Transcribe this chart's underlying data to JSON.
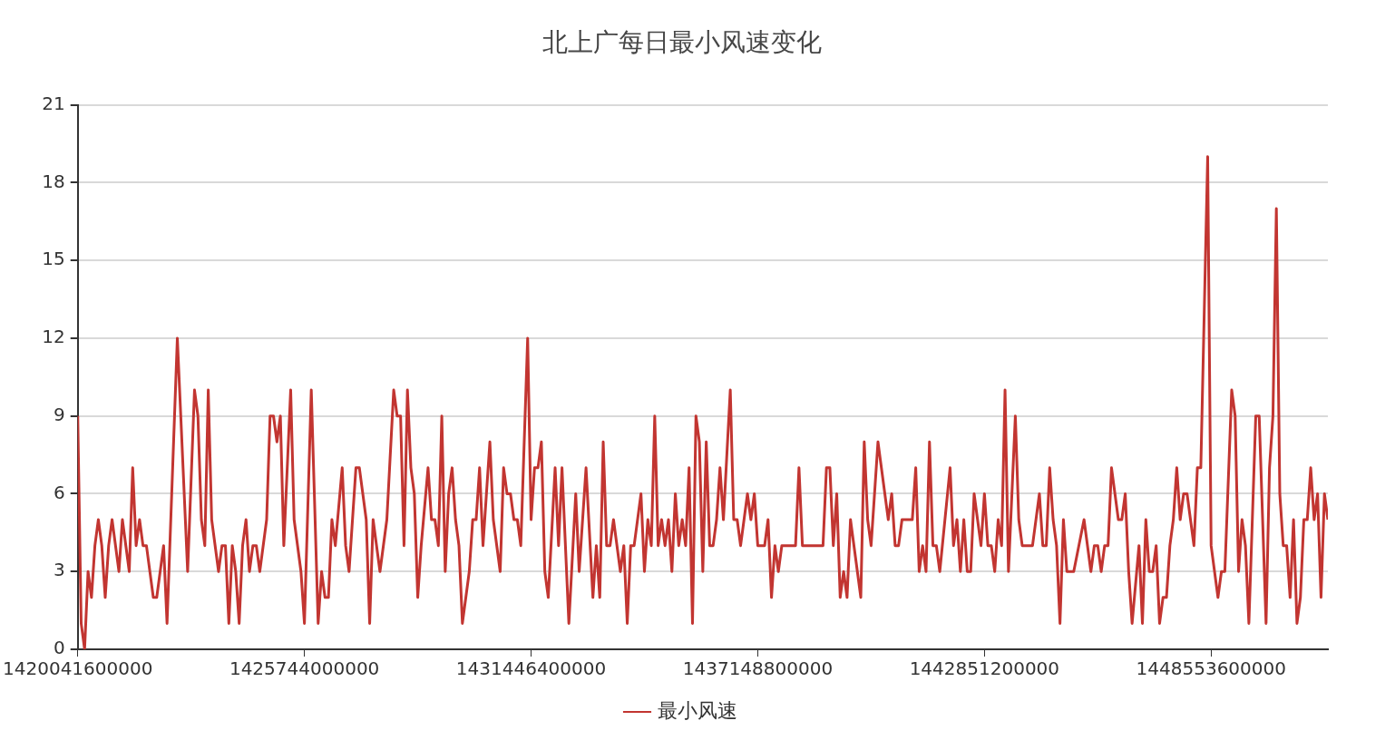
{
  "chart_data": {
    "type": "line",
    "title": "北上广每日最小风速变化",
    "legend": "bottom",
    "grid": "y",
    "marker": "none",
    "line_style": "solid",
    "xlim": [
      1420041600000,
      1451491200000
    ],
    "xticks": [
      1420041600000,
      1425744000000,
      1431446400000,
      1437148800000,
      1442851200000,
      1448553600000
    ],
    "ylim": [
      0,
      21
    ],
    "yticks": [
      0,
      3,
      6,
      9,
      12,
      15,
      18,
      21
    ],
    "series": [
      {
        "name": "最小风速",
        "color": "#c23531",
        "x": [
          1420041600000,
          1420128000000,
          1420214400000,
          1420300800000,
          1420387200000,
          1420473600000,
          1420560000000,
          1420646400000,
          1420732800000,
          1420819200000,
          1420905600000,
          1421078400000,
          1421164800000,
          1421337600000,
          1421424000000,
          1421510400000,
          1421596800000,
          1421683200000,
          1421769600000,
          1421942400000,
          1422028800000,
          1422201600000,
          1422288000000,
          1422547200000,
          1422806400000,
          1422979200000,
          1423065600000,
          1423152000000,
          1423238400000,
          1423324800000,
          1423411200000,
          1423584000000,
          1423670400000,
          1423756800000,
          1423843200000,
          1423929600000,
          1424016000000,
          1424102400000,
          1424188800000,
          1424275200000,
          1424361600000,
          1424448000000,
          1424534400000,
          1424620800000,
          1424793600000,
          1424880000000,
          1424966400000,
          1425052800000,
          1425139200000,
          1425225600000,
          1425398400000,
          1425484800000,
          1425657600000,
          1425744000000,
          1425916800000,
          1426089600000,
          1426176000000,
          1426262400000,
          1426348800000,
          1426435200000,
          1426521600000,
          1426694400000,
          1426780800000,
          1426867200000,
          1427040000000,
          1427126400000,
          1427299200000,
          1427385600000,
          1427472000000,
          1427644800000,
          1427817600000,
          1427990400000,
          1428076800000,
          1428163200000,
          1428249600000,
          1428336000000,
          1428422400000,
          1428508800000,
          1428595200000,
          1428681600000,
          1428854400000,
          1428940800000,
          1429027200000,
          1429113600000,
          1429200000000,
          1429286400000,
          1429372800000,
          1429459200000,
          1429545600000,
          1429632000000,
          1429718400000,
          1429891200000,
          1429977600000,
          1430064000000,
          1430150400000,
          1430236800000,
          1430409600000,
          1430496000000,
          1430668800000,
          1430755200000,
          1430841600000,
          1430928000000,
          1431014400000,
          1431100800000,
          1431187200000,
          1431360000000,
          1431446400000,
          1431532800000,
          1431619200000,
          1431705600000,
          1431792000000,
          1431878400000,
          1432051200000,
          1432137600000,
          1432224000000,
          1432396800000,
          1432569600000,
          1432656000000,
          1432828800000,
          1433001600000,
          1433088000000,
          1433174400000,
          1433260800000,
          1433347200000,
          1433433600000,
          1433520000000,
          1433692800000,
          1433779200000,
          1433865600000,
          1433952000000,
          1434038400000,
          1434211200000,
          1434297600000,
          1434384000000,
          1434470400000,
          1434556800000,
          1434643200000,
          1434729600000,
          1434816000000,
          1434902400000,
          1434988800000,
          1435075200000,
          1435161600000,
          1435248000000,
          1435334400000,
          1435420800000,
          1435507200000,
          1435593600000,
          1435680000000,
          1435766400000,
          1435852800000,
          1435939200000,
          1436025600000,
          1436112000000,
          1436198400000,
          1436284800000,
          1436457600000,
          1436544000000,
          1436630400000,
          1436716800000,
          1436889600000,
          1436976000000,
          1437062400000,
          1437148800000,
          1437321600000,
          1437408000000,
          1437494400000,
          1437580800000,
          1437667200000,
          1437753600000,
          1438099200000,
          1438185600000,
          1438272000000,
          1438790400000,
          1438876800000,
          1438963200000,
          1439049600000,
          1439136000000,
          1439222400000,
          1439308800000,
          1439395200000,
          1439481600000,
          1439740800000,
          1439827200000,
          1439913600000,
          1440000000000,
          1440172800000,
          1440432000000,
          1440518400000,
          1440604800000,
          1440691200000,
          1440777600000,
          1441036800000,
          1441123200000,
          1441209600000,
          1441296000000,
          1441382400000,
          1441468800000,
          1441555200000,
          1441641600000,
          1441728000000,
          1441987200000,
          1442073600000,
          1442160000000,
          1442246400000,
          1442332800000,
          1442419200000,
          1442505600000,
          1442592000000,
          1442764800000,
          1442851200000,
          1442937600000,
          1443024000000,
          1443110400000,
          1443196800000,
          1443283200000,
          1443369600000,
          1443456000000,
          1443628800000,
          1443715200000,
          1443801600000,
          1444060800000,
          1444233600000,
          1444320000000,
          1444406400000,
          1444492800000,
          1444579200000,
          1444665600000,
          1444752000000,
          1444838400000,
          1444924800000,
          1445097600000,
          1445356800000,
          1445529600000,
          1445616000000,
          1445702400000,
          1445788800000,
          1445875200000,
          1445961600000,
          1446048000000,
          1446220800000,
          1446307200000,
          1446393600000,
          1446480000000,
          1446566400000,
          1446739200000,
          1446825600000,
          1446912000000,
          1446998400000,
          1447084800000,
          1447171200000,
          1447257600000,
          1447344000000,
          1447430400000,
          1447516800000,
          1447603200000,
          1447689600000,
          1447776000000,
          1447862400000,
          1447948800000,
          1448121600000,
          1448208000000,
          1448294400000,
          1448467200000,
          1448553600000,
          1448726400000,
          1448812800000,
          1448899200000,
          1449072000000,
          1449158400000,
          1449244800000,
          1449331200000,
          1449417600000,
          1449504000000,
          1449676800000,
          1449763200000,
          1449936000000,
          1450022400000,
          1450108800000,
          1450195200000,
          1450281600000,
          1450368000000,
          1450454400000,
          1450540800000,
          1450627200000,
          1450713600000,
          1450800000000,
          1450886400000,
          1450972800000,
          1451059200000,
          1451145600000,
          1451232000000,
          1451318400000,
          1451404800000,
          1451491200000
        ],
        "values": [
          9,
          1,
          0,
          3,
          2,
          4,
          5,
          4,
          2,
          4,
          5,
          3,
          5,
          3,
          7,
          4,
          5,
          4,
          4,
          2,
          2,
          4,
          1,
          12,
          3,
          10,
          9,
          5,
          4,
          10,
          5,
          3,
          4,
          4,
          1,
          4,
          3,
          1,
          4,
          5,
          3,
          4,
          4,
          3,
          5,
          9,
          9,
          8,
          9,
          4,
          10,
          5,
          3,
          1,
          10,
          1,
          3,
          2,
          2,
          5,
          4,
          7,
          4,
          3,
          7,
          7,
          5,
          1,
          5,
          3,
          5,
          10,
          9,
          9,
          4,
          10,
          7,
          6,
          2,
          4,
          7,
          5,
          5,
          4,
          9,
          3,
          6,
          7,
          5,
          4,
          1,
          3,
          5,
          5,
          7,
          4,
          8,
          5,
          3,
          7,
          6,
          6,
          5,
          5,
          4,
          12,
          5,
          7,
          7,
          8,
          3,
          2,
          7,
          4,
          7,
          1,
          6,
          3,
          7,
          2,
          4,
          2,
          8,
          4,
          4,
          5,
          3,
          4,
          1,
          4,
          4,
          6,
          3,
          5,
          4,
          9,
          4,
          5,
          4,
          5,
          3,
          6,
          4,
          5,
          4,
          7,
          1,
          9,
          8,
          3,
          8,
          4,
          4,
          5,
          7,
          5,
          10,
          5,
          5,
          4,
          6,
          5,
          6,
          4,
          4,
          5,
          2,
          4,
          3,
          4,
          4,
          7,
          4,
          4,
          7,
          7,
          4,
          6,
          2,
          3,
          2,
          5,
          2,
          8,
          5,
          4,
          8,
          5,
          6,
          4,
          4,
          5,
          5,
          7,
          3,
          4,
          3,
          8,
          4,
          4,
          3,
          7,
          4,
          5,
          3,
          5,
          3,
          3,
          6,
          4,
          6,
          4,
          4,
          3,
          5,
          4,
          10,
          3,
          9,
          5,
          4,
          4,
          6,
          4,
          4,
          7,
          5,
          4,
          1,
          5,
          3,
          3,
          5,
          3,
          4,
          4,
          3,
          4,
          4,
          7,
          5,
          5,
          6,
          3,
          1,
          4,
          1,
          5,
          3,
          3,
          4,
          1,
          2,
          2,
          4,
          5,
          7,
          5,
          6,
          6,
          4,
          7,
          7,
          19,
          4,
          2,
          3,
          3,
          10,
          9,
          3,
          5,
          4,
          1,
          9,
          9,
          1,
          7,
          9,
          17,
          6,
          4,
          4,
          2,
          5,
          1,
          2,
          5,
          5,
          7,
          5,
          6,
          2,
          6,
          5
        ]
      }
    ]
  }
}
